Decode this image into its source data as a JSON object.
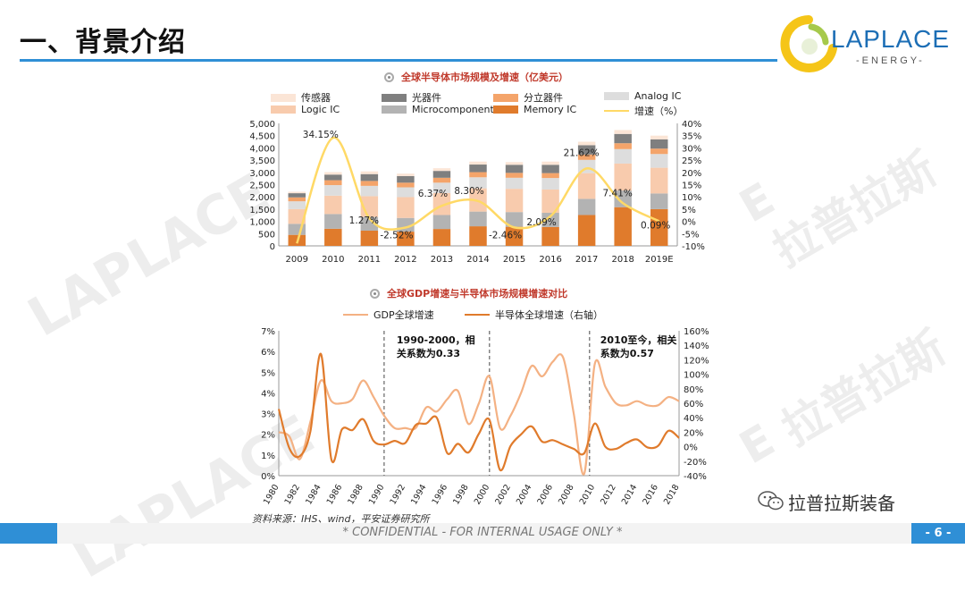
{
  "slide": {
    "title": "一、背景介绍",
    "page": "- 6 -",
    "footer": "* CONFIDENTIAL - FOR INTERNAL USAGE ONLY *",
    "source": "资料来源：IHS、wind，平安证券研究所",
    "wechat_name": "拉普拉斯装备",
    "watermark_en": "LAPLACE",
    "watermark_cn": "拉普拉斯",
    "watermark_e": "E"
  },
  "logo": {
    "name": "LAPLACE",
    "sub": "-ENERGY-"
  },
  "colors": {
    "accent": "#2f8fd6",
    "gdp": "#f4b183",
    "semi": "#e07b2c"
  },
  "chart_data": [
    {
      "type": "bar",
      "stacked": true,
      "title": "全球半导体市场规模及增速（亿美元）",
      "categories": [
        "2009",
        "2010",
        "2011",
        "2012",
        "2013",
        "2014",
        "2015",
        "2016",
        "2017",
        "2018",
        "2019E"
      ],
      "ylim": [
        0,
        5000
      ],
      "yticks": [
        "0",
        "500",
        "1,000",
        "1,500",
        "2,000",
        "2,500",
        "3,000",
        "3,500",
        "4,000",
        "4,500",
        "5,000"
      ],
      "y2lim": [
        -10,
        40
      ],
      "y2ticks": [
        "-10%",
        "-5%",
        "0%",
        "5%",
        "10%",
        "15%",
        "20%",
        "25%",
        "30%",
        "35%",
        "40%"
      ],
      "series": [
        {
          "name": "Memory IC",
          "color": "#e07b2c",
          "values": [
            450,
            700,
            620,
            580,
            690,
            800,
            780,
            770,
            1260,
            1580,
            1500
          ]
        },
        {
          "name": "Microcomponent IC",
          "color": "#b3b3b3",
          "values": [
            450,
            600,
            560,
            560,
            570,
            600,
            600,
            580,
            660,
            680,
            640
          ]
        },
        {
          "name": "Logic IC",
          "color": "#f8cbad",
          "values": [
            600,
            750,
            850,
            850,
            900,
            950,
            950,
            950,
            1050,
            1100,
            1050
          ]
        },
        {
          "name": "Analog IC",
          "color": "#dddddd",
          "values": [
            320,
            430,
            420,
            400,
            420,
            450,
            450,
            470,
            540,
            590,
            560
          ]
        },
        {
          "name": "分立器件",
          "color": "#f4a46a",
          "values": [
            160,
            200,
            200,
            190,
            200,
            210,
            200,
            200,
            220,
            240,
            220
          ]
        },
        {
          "name": "光器件",
          "color": "#7f7f7f",
          "values": [
            170,
            230,
            280,
            270,
            280,
            310,
            330,
            340,
            380,
            380,
            380
          ]
        },
        {
          "name": "传感器",
          "color": "#fbe5d6",
          "values": [
            60,
            100,
            110,
            100,
            110,
            120,
            110,
            130,
            140,
            160,
            150
          ]
        }
      ],
      "line": {
        "name": "增速（%）",
        "color": "#ffd966",
        "values": [
          -9,
          34.15,
          1.27,
          -2.52,
          6.37,
          8.3,
          -2.46,
          2.09,
          21.62,
          7.41,
          0.09
        ]
      },
      "line_labels": [
        null,
        "34.15%",
        "1.27%",
        "-2.52%",
        "6.37%",
        "8.30%",
        "-2.46%",
        "2.09%",
        "21.62%",
        "7.41%",
        "0.09%"
      ]
    },
    {
      "type": "line",
      "title": "全球GDP增速与半导体市场规模增速对比",
      "x": [
        1980,
        1981,
        1982,
        1983,
        1984,
        1985,
        1986,
        1987,
        1988,
        1989,
        1990,
        1991,
        1992,
        1993,
        1994,
        1995,
        1996,
        1997,
        1998,
        1999,
        2000,
        2001,
        2002,
        2003,
        2004,
        2005,
        2006,
        2007,
        2008,
        2009,
        2010,
        2011,
        2012,
        2013,
        2014,
        2015,
        2016,
        2017,
        2018
      ],
      "xticks": [
        "1980",
        "1982",
        "1984",
        "1986",
        "1988",
        "1990",
        "1992",
        "1994",
        "1996",
        "1998",
        "2000",
        "2002",
        "2004",
        "2006",
        "2008",
        "2010",
        "2012",
        "2014",
        "2016",
        "2018"
      ],
      "ylim": [
        0,
        7
      ],
      "yticks": [
        "0%",
        "1%",
        "2%",
        "3%",
        "4%",
        "5%",
        "6%",
        "7%"
      ],
      "y2lim": [
        -40,
        160
      ],
      "y2ticks": [
        "-40%",
        "-20%",
        "0%",
        "20%",
        "40%",
        "60%",
        "80%",
        "100%",
        "120%",
        "140%",
        "160%"
      ],
      "series": [
        {
          "name": "GDP全球增速",
          "axis": "left",
          "color": "#f4b183",
          "values": [
            2.1,
            1.9,
            0.8,
            2.6,
            4.6,
            3.6,
            3.5,
            3.7,
            4.6,
            3.8,
            2.9,
            2.3,
            2.3,
            2.3,
            3.3,
            3.1,
            3.7,
            4.1,
            2.5,
            3.5,
            4.8,
            2.3,
            2.9,
            4.0,
            5.3,
            4.8,
            5.5,
            5.7,
            3.0,
            0.1,
            5.4,
            4.3,
            3.5,
            3.4,
            3.6,
            3.4,
            3.4,
            3.8,
            3.6
          ]
        },
        {
          "name": "半导体全球增速（右轴）",
          "axis": "right",
          "color": "#e07b2c",
          "values": [
            52,
            -2,
            -13,
            21,
            128,
            -18,
            24,
            23,
            38,
            8,
            3,
            8,
            5,
            30,
            32,
            40,
            -9,
            4,
            -8,
            18,
            37,
            -32,
            1,
            17,
            28,
            7,
            9,
            3,
            -3,
            -9,
            32,
            0,
            -3,
            5,
            10,
            -1,
            1,
            22,
            12
          ]
        }
      ],
      "annotations": [
        {
          "text": [
            "1990-2000，相",
            "关系数为0.33"
          ]
        },
        {
          "text": [
            "2010至今，相关",
            "系数为0.57"
          ]
        }
      ]
    }
  ]
}
